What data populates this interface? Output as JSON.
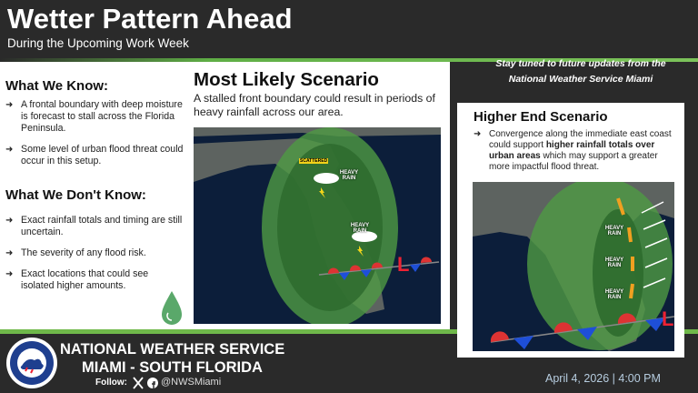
{
  "header": {
    "title": "Wetter Pattern Ahead",
    "subtitle": "During the Upcoming Work Week"
  },
  "notice": [
    "Stay tuned to future updates from the",
    "National Weather Service Miami"
  ],
  "know": {
    "heading": "What We Know:",
    "items": [
      "A frontal boundary with deep moisture is forecast to stall across the Florida Peninsula.",
      "Some level of urban flood threat could occur in this setup."
    ]
  },
  "dont_know": {
    "heading": "What We Don't Know:",
    "items": [
      "Exact rainfall totals and timing are still uncertain.",
      "The severity of any flood risk.",
      "Exact locations that could see isolated higher amounts."
    ]
  },
  "most_likely": {
    "title": "Most Likely Scenario",
    "text": "A stalled front boundary could result in periods of heavy rainfall across our area.",
    "map_labels": [
      "SCATTERED",
      "HEAVY RAIN",
      "HEAVY RAIN"
    ]
  },
  "higher_end": {
    "title": "Higher End Scenario",
    "text_before": "Convergence along the immediate east coast could support ",
    "text_bold": "higher rainfall totals over urban areas",
    "text_after": " which may support a greater more impactful flood threat.",
    "map_labels": [
      "HEAVY RAIN",
      "HEAVY RAIN",
      "HEAVY RAIN"
    ]
  },
  "footer": {
    "org": "NATIONAL WEATHER SERVICE",
    "office": "MIAMI - SOUTH FLORIDA",
    "follow": "Follow:",
    "handle": "@NWSMiami",
    "date": "April 4, 2026 | 4:00 PM"
  }
}
